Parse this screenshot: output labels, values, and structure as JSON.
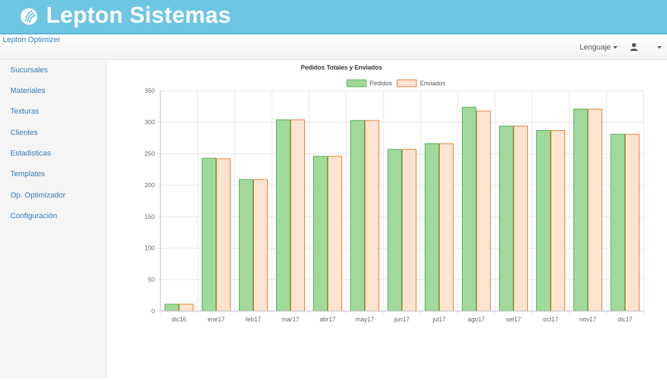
{
  "header": {
    "brand": "Lepton Sistemas"
  },
  "navbar": {
    "app_name": "Lepton Optimizer",
    "language_label": "Lenguaje"
  },
  "sidebar": {
    "items": [
      {
        "label": "Sucursales"
      },
      {
        "label": "Materiales"
      },
      {
        "label": "Texturas"
      },
      {
        "label": "Clientes"
      },
      {
        "label": "Estadisticas"
      },
      {
        "label": "Templates"
      },
      {
        "label": "Op. Optimizador"
      },
      {
        "label": "Configuración"
      }
    ]
  },
  "colors": {
    "banner": "#6ec6e3",
    "pedidos_fill": "#a1d99b",
    "pedidos_stroke": "#4caf50",
    "enviados_fill": "#fde4d0",
    "enviados_stroke": "#e6792e"
  },
  "chart_data": {
    "type": "bar",
    "title": "Pedidos Totales y Enviados",
    "categories": [
      "dic16",
      "ene17",
      "feb17",
      "mar17",
      "abr17",
      "may17",
      "jun17",
      "jul17",
      "ago17",
      "set17",
      "oct17",
      "nov17",
      "dic17"
    ],
    "series": [
      {
        "name": "Pedidos",
        "values": [
          11,
          243,
          209,
          304,
          246,
          303,
          257,
          266,
          324,
          294,
          287,
          321,
          281
        ]
      },
      {
        "name": "Enviados",
        "values": [
          11,
          242,
          209,
          304,
          246,
          303,
          257,
          266,
          318,
          294,
          287,
          321,
          281
        ]
      }
    ],
    "ylim": [
      0,
      350
    ],
    "yticks": [
      "0",
      "50",
      "100",
      "150",
      "200",
      "250",
      "300",
      "350"
    ],
    "grid": true,
    "legend": "top-center"
  }
}
